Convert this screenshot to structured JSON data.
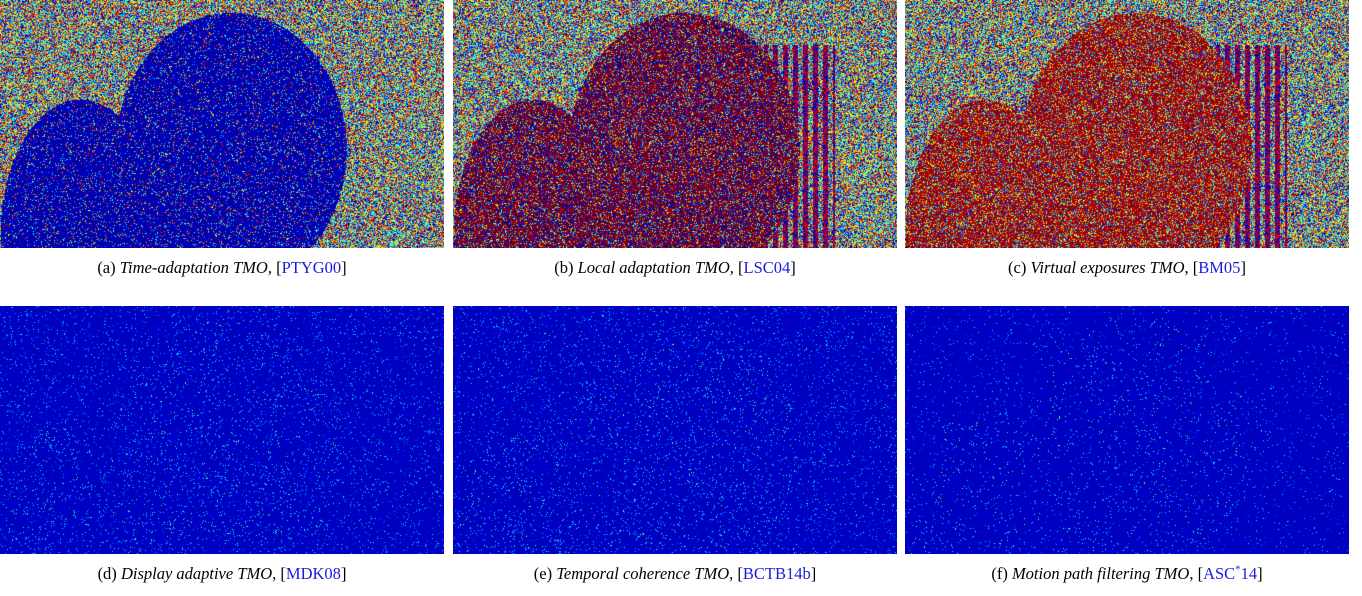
{
  "colors": {
    "map_background": "#00008b",
    "reference_link": "#1a1adb"
  },
  "panels": [
    {
      "label": "(a)",
      "name": "Time-adaptation TMO",
      "ref": "PTYG00",
      "ref_sup": "",
      "noise": "high",
      "subject": "low"
    },
    {
      "label": "(b)",
      "name": "Local adaptation TMO",
      "ref": "LSC04",
      "ref_sup": "",
      "noise": "high",
      "subject": "mixed"
    },
    {
      "label": "(c)",
      "name": "Virtual exposures TMO",
      "ref": "BM05",
      "ref_sup": "",
      "noise": "high",
      "subject": "high"
    },
    {
      "label": "(d)",
      "name": "Display adaptive TMO",
      "ref": "MDK08",
      "ref_sup": "",
      "noise": "low",
      "subject": "low"
    },
    {
      "label": "(e)",
      "name": "Temporal coherence TMO",
      "ref": "BCTB14b",
      "ref_sup": "",
      "noise": "low",
      "subject": "low"
    },
    {
      "label": "(f)",
      "name": "Motion path filtering TMO",
      "ref": "ASC",
      "ref_sup": "*",
      "ref_tail": "14",
      "noise": "very-low",
      "subject": "low"
    }
  ]
}
